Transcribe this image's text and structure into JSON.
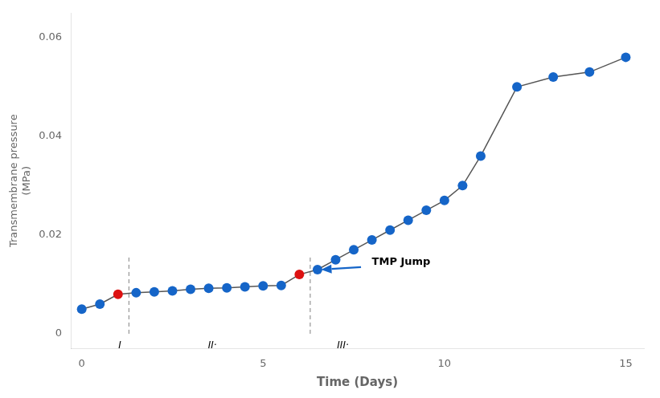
{
  "chart_data": {
    "type": "line",
    "x": [
      0,
      0.5,
      1.0,
      1.5,
      2.0,
      2.5,
      3.0,
      3.5,
      4.0,
      4.5,
      5.0,
      5.5,
      6.0,
      6.5,
      7.0,
      7.5,
      8.0,
      8.5,
      9.0,
      9.5,
      10.0,
      10.5,
      11.0,
      12.0,
      13.0,
      14.0,
      15.0
    ],
    "series": [
      {
        "values": [
          0.005,
          0.006,
          0.008,
          0.0083,
          0.0085,
          0.0087,
          0.009,
          0.0092,
          0.0093,
          0.0095,
          0.0097,
          0.0098,
          0.012,
          0.013,
          0.015,
          0.017,
          0.019,
          0.021,
          0.023,
          0.025,
          0.027,
          0.03,
          0.036,
          0.05,
          0.052,
          0.053,
          0.056
        ],
        "color": "#555555",
        "colors": [
          "#1565C8",
          "#1565C8",
          "#DD1111",
          "#1565C8",
          "#1565C8",
          "#1565C8",
          "#1565C8",
          "#1565C8",
          "#1565C8",
          "#1565C8",
          "#1565C8",
          "#1565C8",
          "#DD1111",
          "#1565C8",
          "#1565C8",
          "#1565C8",
          "#1565C8",
          "#1565C8",
          "#1565C8",
          "#1565C8",
          "#1565C8",
          "#1565C8",
          "#1565C8",
          "#1565C8",
          "#1565C8",
          "#1565C8",
          "#1565C8"
        ],
        "marker": "o"
      }
    ],
    "xlabel": "Time (Days)",
    "ylabel": "Transmembrane pressure\n(MPa)",
    "xlim": [
      -0.3,
      15.5
    ],
    "ylim": [
      -0.003,
      0.065
    ],
    "xticks": [
      0,
      5,
      10,
      15
    ],
    "yticks": [
      0,
      0.02,
      0.04,
      0.06
    ],
    "grid": false,
    "annotations": [
      {
        "type": "vline",
        "x": 1.3,
        "y": [
          0,
          0.016
        ],
        "color": "gray",
        "line_style": "dashed"
      },
      {
        "type": "vline",
        "x": 6.3,
        "y": [
          0,
          0.016
        ],
        "color": "gray",
        "line_style": "dashed"
      },
      {
        "type": "label",
        "text": "I",
        "x": 1.05,
        "y": -0.0015
      },
      {
        "type": "label",
        "text": "II·",
        "x": 3.6,
        "y": -0.0015
      },
      {
        "type": "label",
        "text": "III·",
        "x": 7.2,
        "y": -0.0015
      },
      {
        "type": "arrow",
        "from": [
          7.7,
          0.0135
        ],
        "to": [
          6.6,
          0.013
        ],
        "color": "#1565C8"
      },
      {
        "type": "text",
        "text": "TMP Jump",
        "x": 8.0,
        "y": 0.0145
      }
    ]
  }
}
